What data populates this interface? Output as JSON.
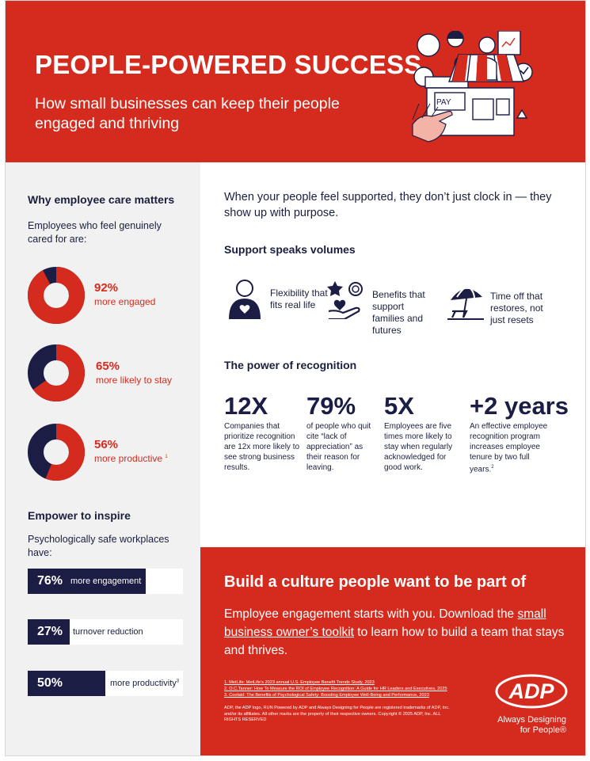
{
  "header": {
    "title": "PEOPLE-POWERED SUCCESS",
    "subtitle": "How small businesses can keep their people engaged and thriving",
    "hero_pay_sign": "PAY"
  },
  "care": {
    "heading": "Why employee care matters",
    "intro": "Employees who feel genuinely cared for are:",
    "stats": [
      {
        "percent": "92%",
        "label": "more engaged",
        "value": 92,
        "note": ""
      },
      {
        "percent": "65%",
        "label": "more likely to stay",
        "value": 65,
        "note": ""
      },
      {
        "percent": "56%",
        "label": "more productive",
        "value": 56,
        "note": "1"
      }
    ]
  },
  "empower": {
    "heading": "Empower to inspire",
    "intro": "Psychologically safe workplaces have:",
    "bars": [
      {
        "percent": "76%",
        "label": "more engagement",
        "value": 76,
        "note": ""
      },
      {
        "percent": "27%",
        "label": "turnover reduction",
        "value": 27,
        "note": ""
      },
      {
        "percent": "50%",
        "label": "more productivity",
        "value": 50,
        "note": "3"
      }
    ]
  },
  "intro": "When your people feel supported, they don’t just clock in — they show up with purpose.",
  "support": {
    "heading": "Support speaks volumes",
    "items": [
      {
        "label": "Flexibility that fits real life",
        "icon": "person-heart-icon"
      },
      {
        "label": "Benefits that support families and futures",
        "icon": "hand-star-coin-icon"
      },
      {
        "label": "Time off that restores, not just resets",
        "icon": "beach-umbrella-icon"
      }
    ]
  },
  "recognition": {
    "heading": "The power of recognition",
    "stats": [
      {
        "value": "12X",
        "desc": "Companies that prioritize recognition are 12x more likely to see strong business results.",
        "note": ""
      },
      {
        "value": "79%",
        "desc": "of people who quit cite “lack of appreciation” as their reason for leaving.",
        "note": ""
      },
      {
        "value": "5X",
        "desc": "Employees are five times more likely to stay when regularly acknowledged for good work.",
        "note": ""
      },
      {
        "value": "+2 years",
        "desc": "An effective employee recognition program increases employee tenure by two full years.",
        "note": "2"
      }
    ]
  },
  "cta": {
    "heading": "Build a culture people want to be part of",
    "text_before": "Employee engagement starts with you. Download the ",
    "link_text": "small business owner’s toolkit",
    "text_after": " to learn how to build a team that stays and thrives."
  },
  "footnotes": [
    "1. MetLife: MetLife’s 2023 annual U.S. Employee Benefit Trends Study, 2023",
    "2. O.C.Tanner: How To Measure the ROI of Employee Recognition: A Guide for HR Leaders and Executives, 2025",
    "3. Coolaid: The Benefits of Psychological Safety: Boosting Employee Well-Being and Performance, 2023"
  ],
  "legal": "ADP, the ADP logo, RUN Powered by ADP and Always Designing for People are registered trademarks of ADP, Inc. and/or its affiliates. All other marks are the property of their respective owners. Copyright © 2025 ADP, Inc. ALL RIGHTS RESERVED",
  "brand": {
    "logo_text": "ADP",
    "tagline": "Always Designing for People",
    "tagline_mark": "®"
  },
  "colors": {
    "red": "#d52b1e",
    "navy": "#1b1d45",
    "light_gray": "#f1f1f1"
  }
}
